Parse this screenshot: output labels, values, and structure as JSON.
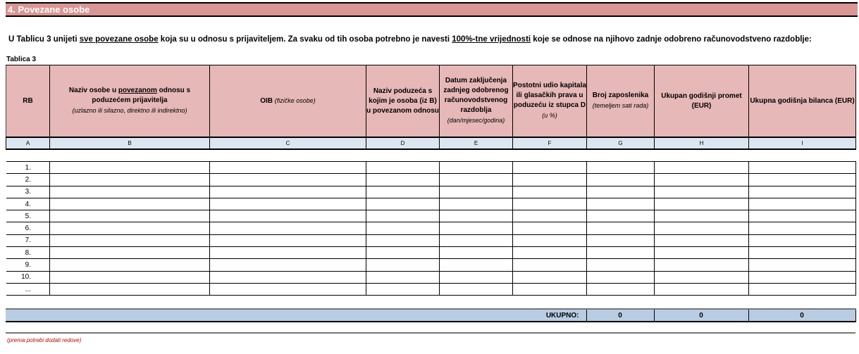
{
  "section_title": "4. Povezane osobe",
  "intro": {
    "p1": "U Tablicu 3 unijeti ",
    "u1": "sve povezane osobe",
    "p2": " koja su u odnosu s  prijaviteljem.  Za svaku od tih osoba potrebno je navesti ",
    "u2": "100%-tne vrijednosti",
    "p3": " koje se odnose na njihovo zadnje odobreno računovodstveno razdoblje:"
  },
  "table_label": "Tablica 3",
  "headers": {
    "a": "RB",
    "b1": "Naziv osobe u ",
    "b_u": "povezanom",
    "b2": " odnosu s poduzećem prijavitelja",
    "b_note": "(uzlazno ili silazno, direktno ili indirektno)",
    "c": "OIB ",
    "c_note": "(fizičke osobe)",
    "d": "Naziv poduzeća s kojim je osoba (iz B) u povezanom odnosu",
    "e": "Datum zaključenja zadnjeg odobrenog računovodstvenog razdoblja",
    "e_note": "(dan/mjesec/godina)",
    "f": "Postotni udio kapitala ili glasačkih prava u poduzeću iz stupca  D",
    "f_note": "(u %)",
    "g": "Broj zaposlenika",
    "g_note": "(temeljem sati rada)",
    "h": "Ukupan godišnji promet (EUR)",
    "i": "Ukupna godišnja bilanca (EUR)"
  },
  "letters": [
    "A",
    "B",
    "C",
    "D",
    "E",
    "F",
    "G",
    "H",
    "I"
  ],
  "rows": [
    "1.",
    "2.",
    "3.",
    "4.",
    "5.",
    "6.",
    "7.",
    "8.",
    "9.",
    "10.",
    "..."
  ],
  "total": {
    "label": "UKUPNO:",
    "g": "0",
    "h": "0",
    "i": "0"
  },
  "note": "(prema potrebi dodati redove)"
}
